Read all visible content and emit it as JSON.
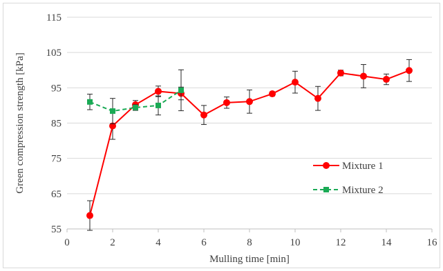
{
  "chart_data": {
    "type": "line",
    "title": "",
    "xlabel": "Mulling time [min]",
    "ylabel": "Green compression strength [kPa]",
    "xlim": [
      0,
      16
    ],
    "ylim": [
      55,
      115
    ],
    "xticks": [
      0,
      2,
      4,
      6,
      8,
      10,
      12,
      14,
      16
    ],
    "yticks": [
      55,
      65,
      75,
      85,
      95,
      105,
      115
    ],
    "grid": "horizontal",
    "legend_position": "right-middle",
    "series": [
      {
        "name": "Mixture 1",
        "color": "#ff0000",
        "marker": "circle",
        "line_style": "solid",
        "x": [
          1,
          2,
          3,
          4,
          5,
          6,
          7,
          8,
          9,
          10,
          11,
          12,
          13,
          14,
          15
        ],
        "y": [
          58.8,
          84.2,
          90.2,
          94.0,
          93.4,
          87.3,
          90.8,
          91.1,
          93.3,
          96.6,
          92.0,
          99.2,
          98.3,
          97.4,
          99.9
        ],
        "error": [
          4.2,
          3.8,
          1.2,
          1.5,
          1.8,
          2.7,
          1.6,
          3.3,
          0.6,
          3.1,
          3.4,
          0.8,
          3.3,
          1.5,
          3.1
        ]
      },
      {
        "name": "Mixture 2",
        "color": "#1aaa55",
        "marker": "square",
        "line_style": "dashed",
        "x": [
          1,
          2,
          3,
          4,
          5
        ],
        "y": [
          91.0,
          88.4,
          89.4,
          90.0,
          94.3
        ],
        "error": [
          2.2,
          3.6,
          0.8,
          2.7,
          5.8
        ]
      }
    ]
  }
}
